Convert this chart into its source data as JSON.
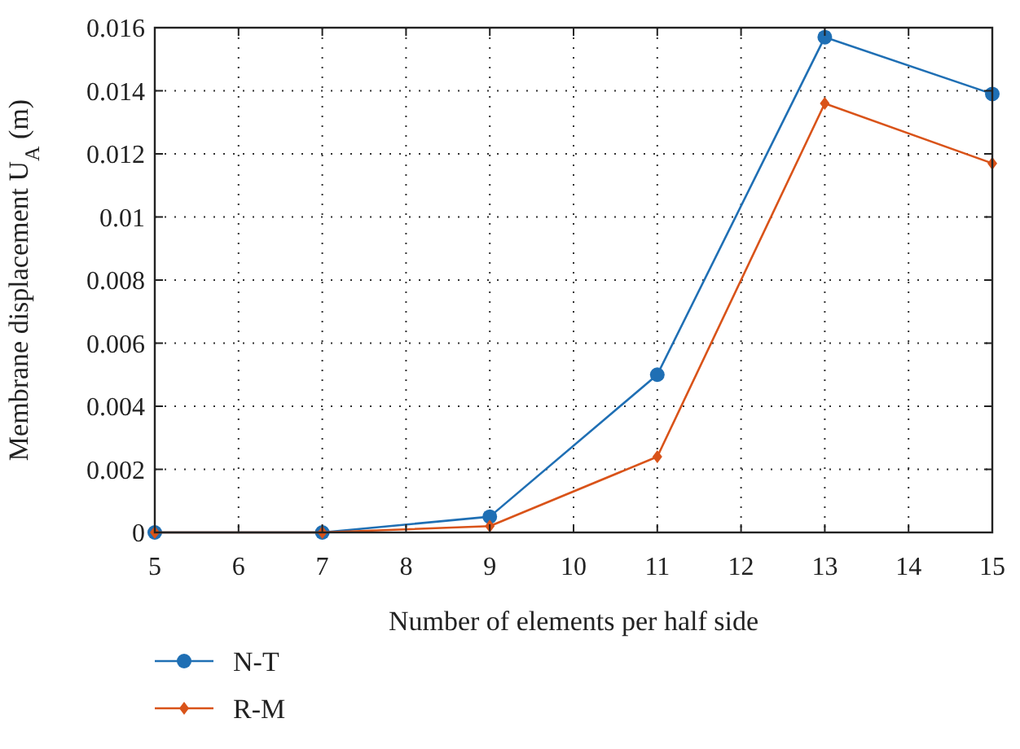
{
  "chart_data": {
    "type": "line",
    "xlabel": "Number of elements per half side",
    "ylabel": "Membrane displacement U$_{A}$ (m)",
    "x": [
      5,
      7,
      9,
      11,
      13,
      15
    ],
    "series": [
      {
        "name": "N-T",
        "color": "#1f6fb4",
        "marker": "circle",
        "values": [
          0,
          0,
          0.0005,
          0.005,
          0.0157,
          0.0139
        ]
      },
      {
        "name": "R-M",
        "color": "#d95319",
        "marker": "diamond",
        "values": [
          0,
          0,
          0.0002,
          0.0024,
          0.0136,
          0.0117
        ]
      }
    ],
    "xlim": [
      5,
      15
    ],
    "xticks": [
      5,
      6,
      7,
      8,
      9,
      10,
      11,
      12,
      13,
      14,
      15
    ],
    "ylim": [
      0,
      0.016
    ],
    "yticks": [
      0,
      0.002,
      0.004,
      0.006,
      0.008,
      0.01,
      0.012,
      0.014,
      0.016
    ],
    "grid": true,
    "legend": "bottom left",
    "line_style": "solid"
  }
}
